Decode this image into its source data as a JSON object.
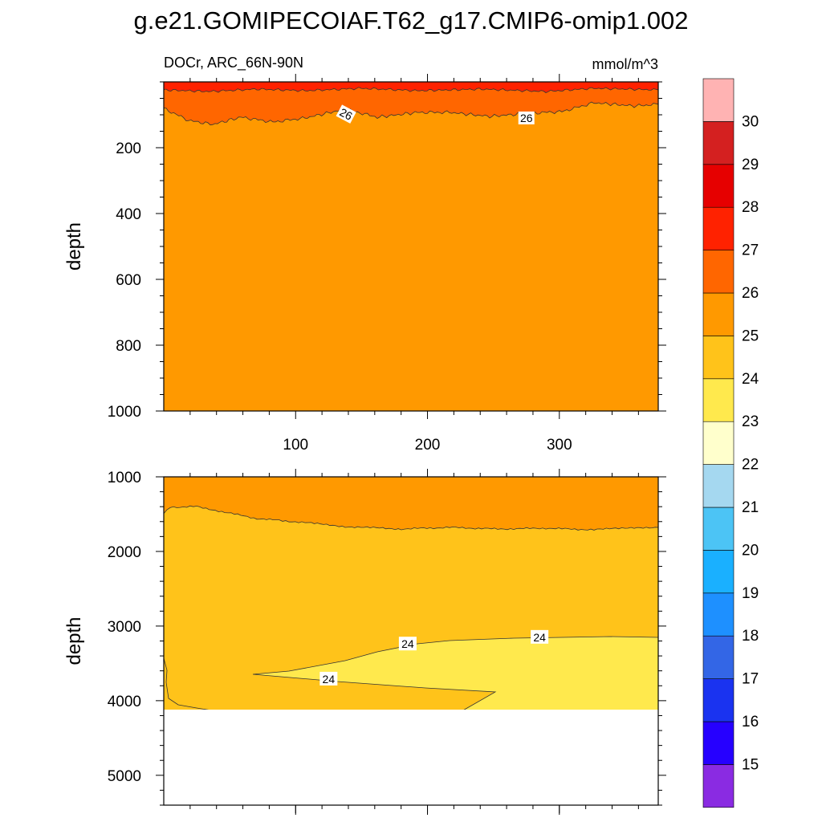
{
  "chart_data": [
    {
      "type": "contour",
      "title": "g.e21.GOMIPECOIAF.T62_g17.CMIP6-omip1.002",
      "subtitle_left": "DOCr, ARC_66N-90N",
      "subtitle_right": "mmol/m^3",
      "xlabel": "",
      "ylabel": "depth",
      "xlim": [
        0,
        375
      ],
      "ylim": [
        0,
        1000
      ],
      "y_reversed": true,
      "x_ticks": [
        100,
        200,
        300
      ],
      "y_ticks": [
        200,
        400,
        600,
        800,
        1000
      ],
      "regions": [
        {
          "range": "25-26",
          "color": "#ff9900",
          "description": "below ~90-140 m to 1000 m"
        },
        {
          "range": "26-27",
          "color": "#ff6600",
          "description": "approx 25-140 m"
        },
        {
          "range": "27-28",
          "color": "#ff2200",
          "description": "surface to ~25 m"
        }
      ],
      "contour_labels": [
        {
          "value": "26",
          "x": 138,
          "depth": 100
        },
        {
          "value": "26",
          "x": 275,
          "depth": 112
        }
      ]
    },
    {
      "type": "contour",
      "xlabel": "",
      "ylabel": "depth",
      "xlim": [
        0,
        375
      ],
      "ylim": [
        1000,
        5400
      ],
      "y_reversed": true,
      "x_ticks": [
        100,
        200,
        300
      ],
      "y_ticks": [
        1000,
        2000,
        3000,
        4000,
        5000
      ],
      "bottom_depth": 4120,
      "regions": [
        {
          "range": "25-26",
          "color": "#ff9900",
          "description": "1000 m to ~1400-1700 m"
        },
        {
          "range": "24-25",
          "color": "#ffc31a",
          "description": "~1700 m to ~3100 m, and west deep water"
        },
        {
          "range": "23-24",
          "color": "#ffe94d",
          "description": "east deep water below ~3100 m"
        }
      ],
      "contour_labels": [
        {
          "value": "24",
          "x": 185,
          "depth": 3240
        },
        {
          "value": "24",
          "x": 285,
          "depth": 3150
        },
        {
          "value": "24",
          "x": 125,
          "depth": 3710
        }
      ]
    }
  ],
  "colorbar": {
    "labels": [
      "15",
      "16",
      "17",
      "18",
      "19",
      "20",
      "21",
      "22",
      "23",
      "24",
      "25",
      "26",
      "27",
      "28",
      "29",
      "30"
    ],
    "colors": [
      "#8a2be2",
      "#2600ff",
      "#1a33f0",
      "#3366e6",
      "#1e90ff",
      "#1ab0ff",
      "#4cc4f5",
      "#a5d8f0",
      "#ffffcc",
      "#ffe94d",
      "#ffc31a",
      "#ff9900",
      "#ff6600",
      "#ff2200",
      "#e60000",
      "#d42020",
      "#ffb3b3"
    ]
  }
}
